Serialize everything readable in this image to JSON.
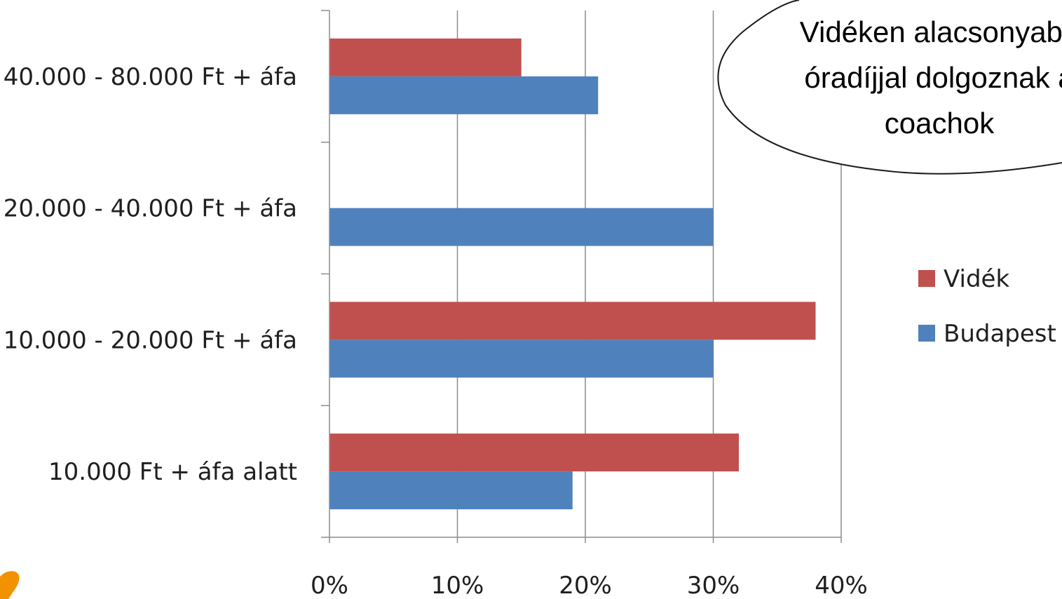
{
  "chart_data": {
    "type": "bar",
    "orientation": "horizontal",
    "categories": [
      "40.000 - 80.000 Ft + áfa",
      "20.000 - 40.000 Ft + áfa",
      "10.000 - 20.000 Ft + áfa",
      "10.000 Ft + áfa alatt"
    ],
    "series": [
      {
        "name": "Vidék",
        "color": "#c0504d",
        "values": [
          15,
          0,
          38,
          32
        ]
      },
      {
        "name": "Budapest",
        "color": "#4f81bd",
        "values": [
          21,
          30,
          30,
          19
        ]
      }
    ],
    "xlim": [
      0,
      40
    ],
    "x_ticks": [
      "0%",
      "10%",
      "20%",
      "30%",
      "40%"
    ],
    "grid": true,
    "legend_position": "right"
  },
  "callout": {
    "lines": [
      "Vidéken alacsonyabb",
      "óradíjjal dolgoznak a",
      "coachok"
    ]
  }
}
